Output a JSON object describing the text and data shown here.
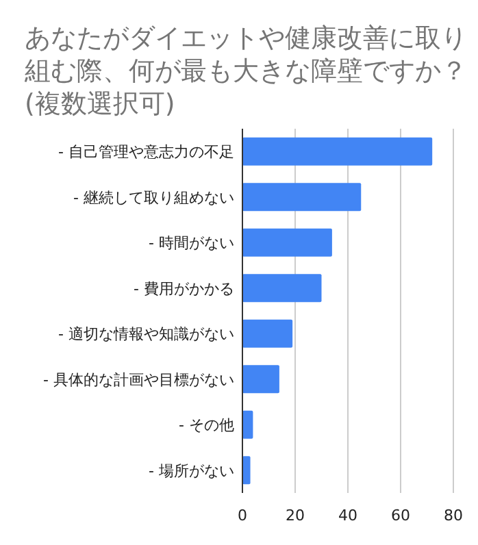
{
  "chart_data": {
    "type": "bar",
    "orientation": "horizontal",
    "title": "あなたがダイエットや健康改善に取り組む際、何が最も大きな障壁ですか？(複数選択可)",
    "categories": [
      "- 自己管理や意志力の不足",
      "- 継続して取り組めない",
      "- 時間がない",
      "- 費用がかかる",
      "- 適切な情報や知識がない",
      "- 具体的な計画や目標がない",
      "- その他",
      "- 場所がない"
    ],
    "values": [
      72,
      45,
      34,
      30,
      19,
      14,
      4,
      3
    ],
    "color": "#4285f4",
    "xlim": [
      0,
      80
    ],
    "xticks": [
      0,
      20,
      40,
      60,
      80
    ],
    "grid": "x"
  }
}
